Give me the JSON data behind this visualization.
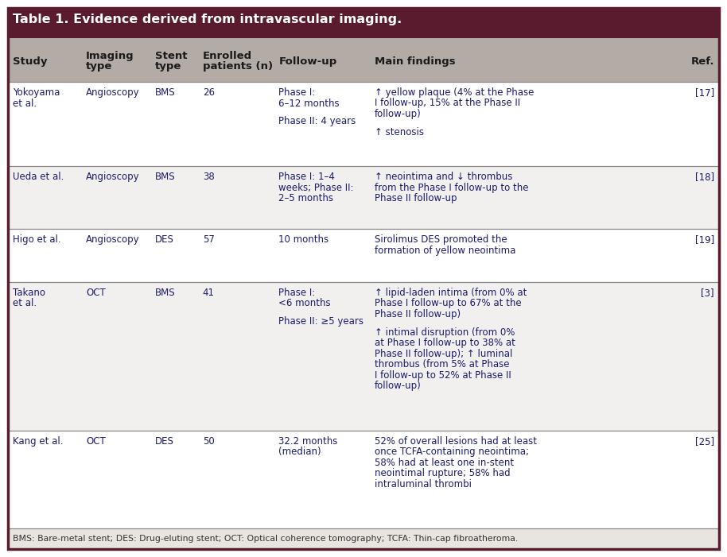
{
  "title": "Table 1. Evidence derived from intravascular imaging.",
  "title_bg": "#5b1b2e",
  "title_color": "#ffffff",
  "header_bg": "#b3aca6",
  "header_color": "#1a1a1a",
  "border_color": "#5b1b2e",
  "text_color": "#1a1a6e",
  "footer_bg": "#e8e4e0",
  "footer_text": "BMS: Bare-metal stent; DES: Drug-eluting stent; OCT: Optical coherence tomography; TCFA: Thin-cap fibroatheroma.",
  "col_headers": [
    [
      "Study"
    ],
    [
      "Imaging",
      "type"
    ],
    [
      "Stent",
      "type"
    ],
    [
      "Enrolled",
      "patients (n)"
    ],
    [
      "Follow-up"
    ],
    [
      "Main findings"
    ],
    [
      "Ref."
    ]
  ],
  "rows": [
    {
      "study": [
        "Yokoyama",
        "et al."
      ],
      "imaging": [
        "Angioscopy"
      ],
      "stent": [
        "BMS"
      ],
      "enrolled": [
        "26"
      ],
      "followup": [
        [
          "Phase I:",
          "6–12 months"
        ],
        [
          "Phase II: 4 years"
        ]
      ],
      "findings": [
        [
          "↑ yellow plaque (4% at the Phase",
          "I follow-up, 15% at the Phase II",
          "follow-up)"
        ],
        [
          "↑ stenosis"
        ]
      ],
      "ref": [
        "[17]"
      ]
    },
    {
      "study": [
        "Ueda et al."
      ],
      "imaging": [
        "Angioscopy"
      ],
      "stent": [
        "BMS"
      ],
      "enrolled": [
        "38"
      ],
      "followup": [
        [
          "Phase I: 1–4",
          "weeks; Phase II:",
          "2–5 months"
        ]
      ],
      "findings": [
        [
          "↑ neointima and ↓ thrombus",
          "from the Phase I follow-up to the",
          "Phase II follow-up"
        ]
      ],
      "ref": [
        "[18]"
      ]
    },
    {
      "study": [
        "Higo et al."
      ],
      "imaging": [
        "Angioscopy"
      ],
      "stent": [
        "DES"
      ],
      "enrolled": [
        "57"
      ],
      "followup": [
        [
          "10 months"
        ]
      ],
      "findings": [
        [
          "Sirolimus DES promoted the",
          "formation of yellow neointima"
        ]
      ],
      "ref": [
        "[19]"
      ]
    },
    {
      "study": [
        "Takano",
        "et al."
      ],
      "imaging": [
        "OCT"
      ],
      "stent": [
        "BMS"
      ],
      "enrolled": [
        "41"
      ],
      "followup": [
        [
          "Phase I:",
          "<6 months"
        ],
        [
          "Phase II: ≥5 years"
        ]
      ],
      "findings": [
        [
          "↑ lipid-laden intima (from 0% at",
          "Phase I follow-up to 67% at the",
          "Phase II follow-up)"
        ],
        [
          "↑ intimal disruption (from 0%",
          "at Phase I follow-up to 38% at",
          "Phase II follow-up); ↑ luminal",
          "thrombus (from 5% at Phase",
          "I follow-up to 52% at Phase II",
          "follow-up)"
        ]
      ],
      "ref": [
        "[3]"
      ]
    },
    {
      "study": [
        "Kang et al."
      ],
      "imaging": [
        "OCT"
      ],
      "stent": [
        "DES"
      ],
      "enrolled": [
        "50"
      ],
      "followup": [
        [
          "32.2 months",
          "(median)"
        ]
      ],
      "findings": [
        [
          "52% of overall lesions had at least",
          "once TCFA-containing neointima;",
          "58% had at least one in-stent",
          "neointimal rupture; 58% had",
          "intraluminal thrombi"
        ]
      ],
      "ref": [
        "[25]"
      ]
    }
  ],
  "fig_w": 9.14,
  "fig_h": 7.01,
  "dpi": 100
}
